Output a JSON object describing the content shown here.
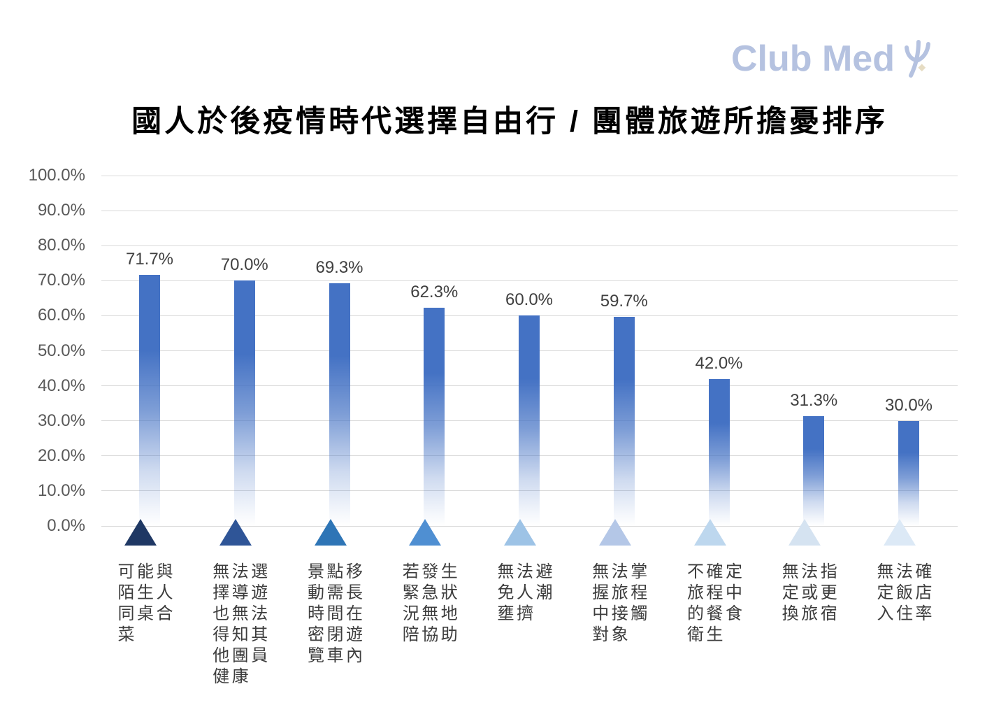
{
  "logo": {
    "text": "Club Med",
    "color": "#b5c2e0",
    "diamond_color": "#e6dcc3"
  },
  "chart_data": {
    "type": "bar",
    "title": "國人於後疫情時代選擇自由行 / 團體旅遊所擔憂排序",
    "categories": [
      "可能與陌生人同桌合菜",
      "無法選擇導遊也無法得知其他團員健康",
      "景點移動需長時間在密閉遊覽車內",
      "若發生緊急狀況無地陪協助",
      "無法避免人潮壅擠",
      "無法掌握旅程中接觸對象",
      "不確定旅程中的餐食衛生",
      "無法指定或更換旅宿",
      "無法確定飯店入住率"
    ],
    "values": [
      71.7,
      70.0,
      69.3,
      62.3,
      60.0,
      59.7,
      42.0,
      31.3,
      30.0
    ],
    "ylim": [
      0,
      100
    ],
    "ytick_step": 10,
    "ytick_suffix": "%",
    "grid": true,
    "legend": "none",
    "bar_color": "#4472c4",
    "gridline_color": "#d9d9d9",
    "marker_shape": "triangle",
    "marker_colors": [
      "#1f3864",
      "#2f5597",
      "#2e75b6",
      "#4f8fd2",
      "#9dc3e6",
      "#b4c7e7",
      "#bdd7ee",
      "#d5e3f1",
      "#dce9f6"
    ]
  }
}
